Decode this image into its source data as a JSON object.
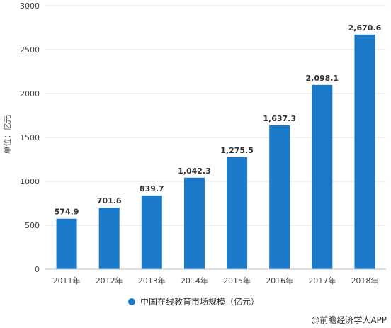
{
  "chart_data": {
    "type": "bar",
    "categories": [
      "2011年",
      "2012年",
      "2013年",
      "2014年",
      "2015年",
      "2016年",
      "2017年",
      "2018年"
    ],
    "series": [
      {
        "name": "中国在线教育市场规模（亿元）",
        "values": [
          574.9,
          701.6,
          839.7,
          1042.3,
          1275.5,
          1637.3,
          2098.1,
          2670.6
        ],
        "color": "#1a7ac9"
      }
    ],
    "data_labels": [
      "574.9",
      "701.6",
      "839.7",
      "1,042.3",
      "1,275.5",
      "1,637.3",
      "2,098.1",
      "2,670.6"
    ],
    "ylabel": "单位：亿元",
    "ylim": [
      0,
      3000
    ],
    "yticks": [
      0,
      500,
      1000,
      1500,
      2000,
      2500,
      3000
    ],
    "grid": true,
    "legend_position": "bottom-center",
    "source": "@前瞻经济学人APP"
  }
}
